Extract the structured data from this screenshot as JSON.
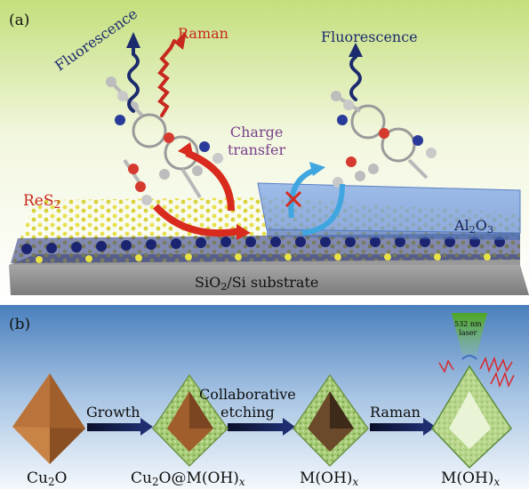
{
  "panel_a": {
    "label": "(a)",
    "fluorescence_left": "Fluorescence",
    "raman": "Raman",
    "fluorescence_right": "Fluorescence",
    "charge_transfer_line1": "Charge",
    "charge_transfer_line2": "transfer",
    "res2_base": "ReS",
    "res2_sub": "2",
    "al2o3_a": "Al",
    "al2o3_sub1": "2",
    "al2o3_b": "O",
    "al2o3_sub2": "3",
    "substrate_a": "SiO",
    "substrate_sub": "2",
    "substrate_b": "/Si substrate"
  },
  "panel_b": {
    "label": "(b)",
    "step_growth": "Growth",
    "step_etch_line1": "Collaborative",
    "step_etch_line2": "etching",
    "step_raman": "Raman",
    "laser_line1": "532 nm",
    "laser_line2": "laser",
    "cu2o_a": "Cu",
    "cu2o_sub": "2",
    "cu2o_b": "O",
    "core_a": "Cu",
    "core_sub": "2",
    "core_b": "O@M(OH)",
    "core_x": "x",
    "moh1_a": "M(OH)",
    "moh1_x": "x",
    "moh2_a": "M(OH)",
    "moh2_x": "x"
  },
  "colors": {
    "panel_a_bg_top": "#cfe58c",
    "panel_b_bg_top": "#5d8fc8",
    "raman_red": "#c8281e",
    "fluorescence_blue": "#1c2a6e",
    "cu2o_brown": "#b06b33",
    "shell_green": "#9cc46a",
    "laser_green": "#6bbf2a"
  }
}
